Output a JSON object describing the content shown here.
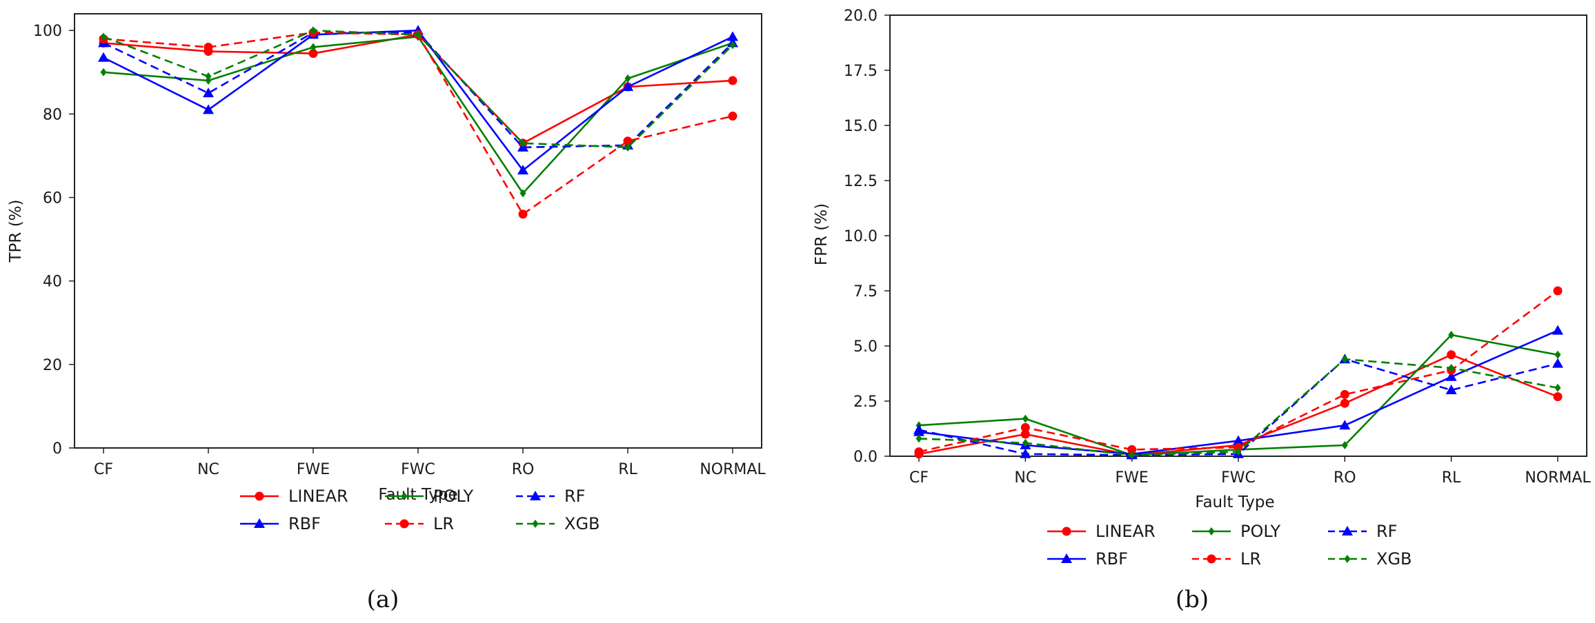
{
  "chart_data": [
    {
      "type": "line",
      "panel_label": "(a)",
      "xlabel": "Fault Type",
      "ylabel": "TPR (%)",
      "categories": [
        "CF",
        "NC",
        "FWE",
        "FWC",
        "RO",
        "RL",
        "NORMAL"
      ],
      "ylim": [
        0,
        104
      ],
      "yticks": [
        0,
        20,
        40,
        60,
        80,
        100
      ],
      "ytick_labels": [
        "0",
        "20",
        "40",
        "60",
        "80",
        "100"
      ],
      "legend_position": "below",
      "series": [
        {
          "name": "LINEAR",
          "color": "#ff0000",
          "dash": "solid",
          "marker": "circle",
          "values": [
            97,
            95,
            94.5,
            99,
            73,
            86.5,
            88
          ]
        },
        {
          "name": "POLY",
          "color": "#008000",
          "dash": "solid",
          "marker": "diamond",
          "values": [
            90,
            88,
            96,
            98.5,
            61,
            88.5,
            97
          ]
        },
        {
          "name": "RF",
          "color": "#0000ff",
          "dash": "dashed",
          "marker": "triangle",
          "values": [
            97,
            85,
            99.5,
            99.5,
            72,
            72.5,
            97
          ]
        },
        {
          "name": "RBF",
          "color": "#0000ff",
          "dash": "solid",
          "marker": "triangle",
          "values": [
            93.5,
            81,
            99,
            100,
            66.5,
            86.5,
            98.5
          ]
        },
        {
          "name": "LR",
          "color": "#ff0000",
          "dash": "dashed",
          "marker": "circle",
          "values": [
            98,
            96,
            99.5,
            99,
            56,
            73.5,
            79.5
          ]
        },
        {
          "name": "XGB",
          "color": "#008000",
          "dash": "dashed",
          "marker": "diamond",
          "values": [
            98.5,
            89,
            100,
            99,
            73,
            72,
            96.5
          ]
        }
      ]
    },
    {
      "type": "line",
      "panel_label": "(b)",
      "xlabel": "Fault Type",
      "ylabel": "FPR (%)",
      "categories": [
        "CF",
        "NC",
        "FWE",
        "FWC",
        "RO",
        "RL",
        "NORMAL"
      ],
      "ylim": [
        0,
        20
      ],
      "yticks": [
        0,
        2.5,
        5,
        7.5,
        10,
        12.5,
        15,
        17.5,
        20
      ],
      "ytick_labels": [
        "0.0",
        "2.5",
        "5.0",
        "7.5",
        "10.0",
        "12.5",
        "15.0",
        "17.5",
        "20.0"
      ],
      "legend_position": "below",
      "series": [
        {
          "name": "LINEAR",
          "color": "#ff0000",
          "dash": "solid",
          "marker": "circle",
          "values": [
            0.1,
            1.0,
            0.05,
            0.5,
            2.4,
            4.6,
            2.7
          ]
        },
        {
          "name": "POLY",
          "color": "#008000",
          "dash": "solid",
          "marker": "diamond",
          "values": [
            1.4,
            1.7,
            0.05,
            0.3,
            0.5,
            5.5,
            4.6
          ]
        },
        {
          "name": "RF",
          "color": "#0000ff",
          "dash": "dashed",
          "marker": "triangle",
          "values": [
            1.2,
            0.1,
            0.05,
            0.1,
            4.4,
            3.0,
            4.2
          ]
        },
        {
          "name": "RBF",
          "color": "#0000ff",
          "dash": "solid",
          "marker": "triangle",
          "values": [
            1.1,
            0.5,
            0.1,
            0.7,
            1.4,
            3.6,
            5.7
          ]
        },
        {
          "name": "LR",
          "color": "#ff0000",
          "dash": "dashed",
          "marker": "circle",
          "values": [
            0.2,
            1.3,
            0.3,
            0.4,
            2.8,
            3.9,
            7.5
          ]
        },
        {
          "name": "XGB",
          "color": "#008000",
          "dash": "dashed",
          "marker": "diamond",
          "values": [
            0.8,
            0.6,
            0.05,
            0.2,
            4.4,
            4.0,
            3.1
          ]
        }
      ]
    }
  ]
}
